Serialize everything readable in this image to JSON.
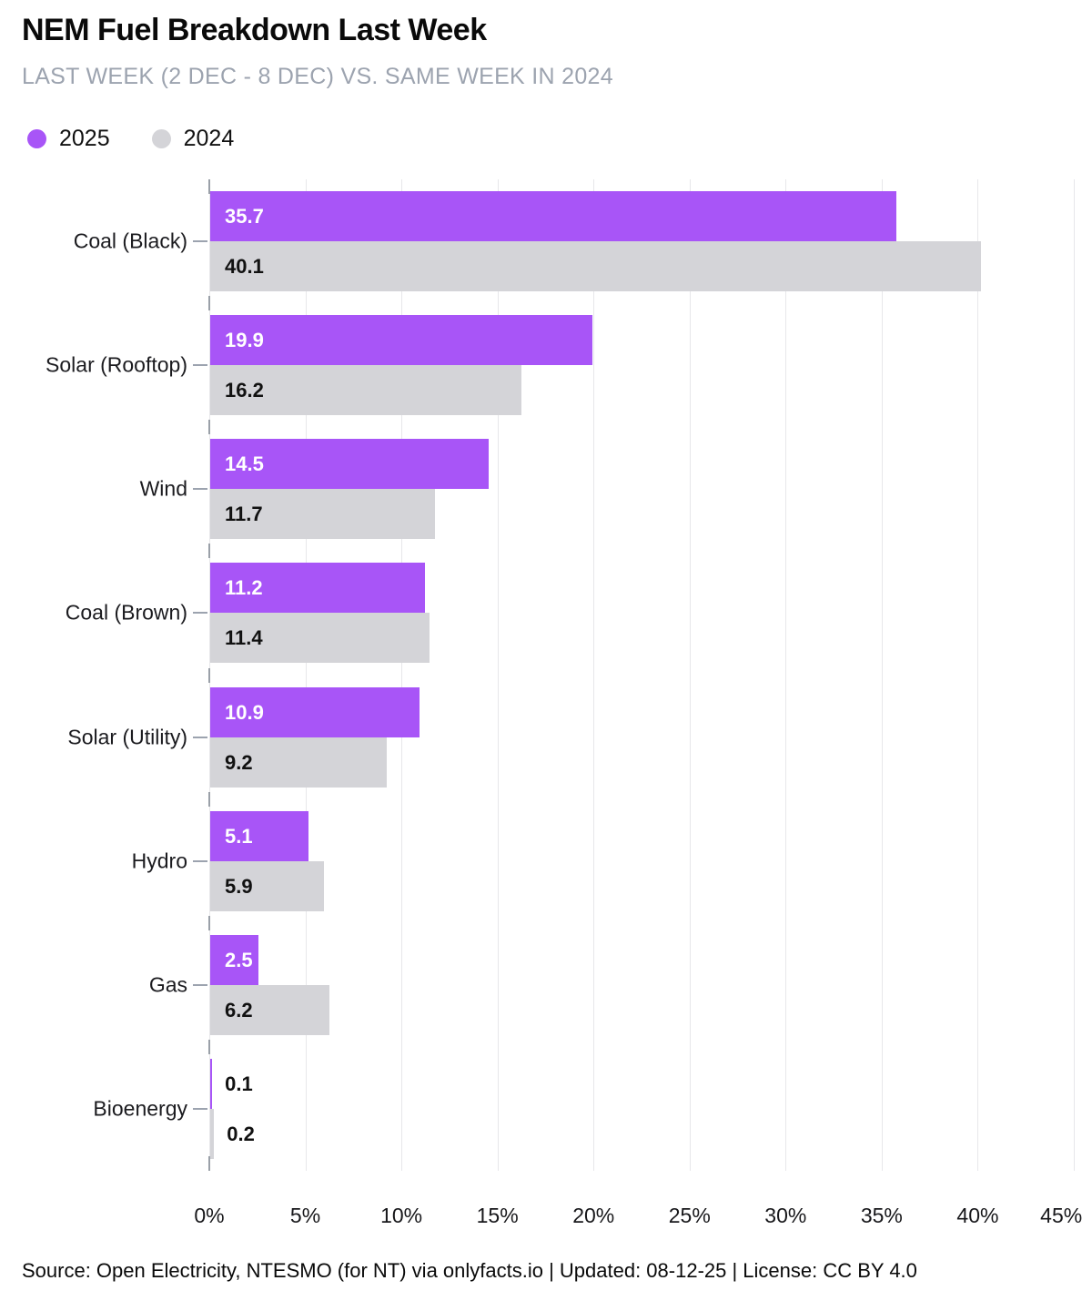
{
  "header": {
    "title": "NEM Fuel Breakdown Last Week",
    "subtitle": "LAST WEEK (2 DEC - 8 DEC) VS. SAME WEEK IN 2024"
  },
  "legend": {
    "items": [
      {
        "label": "2025",
        "color": "#a855f7"
      },
      {
        "label": "2024",
        "color": "#d4d4d8"
      }
    ]
  },
  "chart_data": {
    "type": "bar",
    "orientation": "horizontal",
    "title": "NEM Fuel Breakdown Last Week",
    "subtitle": "LAST WEEK (2 DEC - 8 DEC) VS. SAME WEEK IN 2024",
    "categories": [
      "Coal (Black)",
      "Solar (Rooftop)",
      "Wind",
      "Coal (Brown)",
      "Solar (Utility)",
      "Hydro",
      "Gas",
      "Bioenergy"
    ],
    "series": [
      {
        "name": "2025",
        "color": "#a855f7",
        "values": [
          35.7,
          19.9,
          14.5,
          11.2,
          10.9,
          5.1,
          2.5,
          0.1
        ]
      },
      {
        "name": "2024",
        "color": "#d4d4d8",
        "values": [
          40.1,
          16.2,
          11.7,
          11.4,
          9.2,
          5.9,
          6.2,
          0.2
        ]
      }
    ],
    "value_unit": "%",
    "xlim": [
      0,
      45
    ],
    "x_ticks": [
      "0%",
      "5%",
      "10%",
      "15%",
      "20%",
      "25%",
      "30%",
      "35%",
      "40%",
      "45%"
    ],
    "grid": "vertical-on",
    "legend_position": "top-left",
    "value_labels": "inside-start, outside when bar too short"
  },
  "colors": {
    "bar_2025": "#a855f7",
    "bar_2024": "#d4d4d8",
    "grid": "#e7e7ea",
    "axis_tick": "#9aa0a8",
    "category_dash": "#9ca3af",
    "label_on_purple": "#ffffff",
    "label_on_gray": "#111111",
    "subtitle_text": "#9ca3af"
  },
  "footer": {
    "text": "Source: Open Electricity, NTESMO (for NT) via onlyfacts.io | Updated: 08-12-25 | License: CC BY 4.0"
  }
}
